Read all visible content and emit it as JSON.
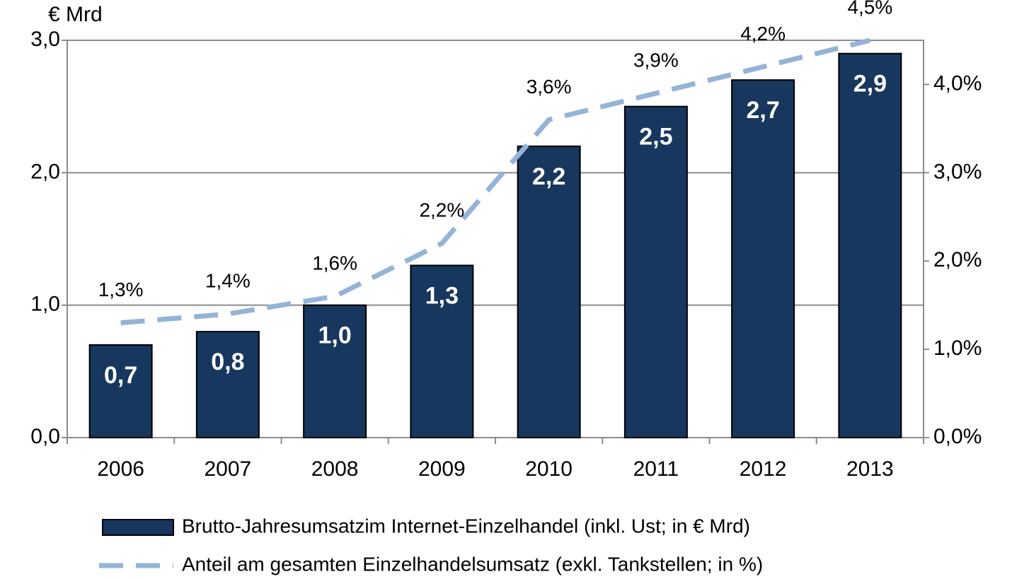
{
  "chart_data": {
    "type": "bar",
    "y_label": "€ Mrd",
    "categories": [
      "2006",
      "2007",
      "2008",
      "2009",
      "2010",
      "2011",
      "2012",
      "2013"
    ],
    "series": [
      {
        "name": "Brutto-Jahresumsatzim Internet-Einzelhandel (inkl. Ust; in € Mrd)",
        "type": "bar",
        "axis": "y",
        "color": "#17375e",
        "values": [
          0.7,
          0.8,
          1.0,
          1.3,
          2.2,
          2.5,
          2.7,
          2.9
        ],
        "value_labels": [
          "0,7",
          "0,8",
          "1,0",
          "1,3",
          "2,2",
          "2,5",
          "2,7",
          "2,9"
        ]
      },
      {
        "name": "Anteil am gesamten Einzelhandelsumsatz (exkl. Tankstellen; in %)",
        "type": "line",
        "axis": "y2",
        "color": "#95b3d7",
        "values": [
          1.3,
          1.4,
          1.6,
          2.2,
          3.6,
          3.9,
          4.2,
          4.5
        ],
        "value_labels": [
          "1,3%",
          "1,4%",
          "1,6%",
          "2,2%",
          "3,6%",
          "3,9%",
          "4,2%",
          "4,5%"
        ]
      }
    ],
    "ylim": [
      0,
      3
    ],
    "yticks": [
      {
        "value": 0,
        "label": "0,0"
      },
      {
        "value": 1,
        "label": "1,0"
      },
      {
        "value": 2,
        "label": "2,0"
      },
      {
        "value": 3,
        "label": "3,0"
      }
    ],
    "y2lim": [
      0,
      4.5
    ],
    "y2ticks": [
      {
        "value": 0,
        "label": "0,0%"
      },
      {
        "value": 1,
        "label": "1,0%"
      },
      {
        "value": 2,
        "label": "2,0%"
      },
      {
        "value": 3,
        "label": "3,0%"
      },
      {
        "value": 4,
        "label": "4,0%"
      }
    ],
    "grid": true
  }
}
